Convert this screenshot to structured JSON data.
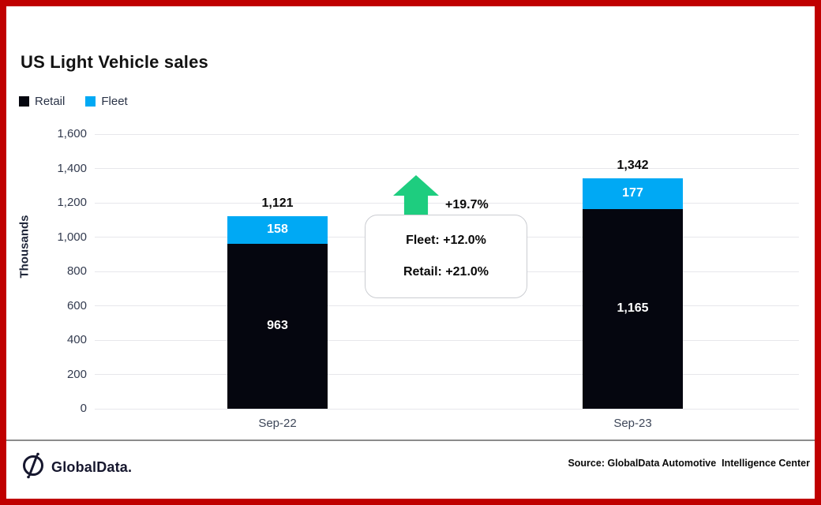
{
  "frame": {
    "border_color": "#C00000",
    "background": "#FFFFFF"
  },
  "header": {
    "title": "US Light Vehicle sales"
  },
  "legend": [
    {
      "label": "Retail",
      "color": "#05060F"
    },
    {
      "label": "Fleet",
      "color": "#00A9F4"
    }
  ],
  "chart_data": {
    "type": "bar",
    "stacked": true,
    "title": "US Light Vehicle sales",
    "ylabel": "Thousands",
    "xlabel": "",
    "ylim": [
      0,
      1600
    ],
    "ytick_interval": 200,
    "yticks": [
      "1,600",
      "1,400",
      "1,200",
      "1,000",
      "800",
      "600",
      "400",
      "200",
      "0"
    ],
    "grid": true,
    "legend_position": "top-left",
    "categories": [
      "Sep-22",
      "Sep-23"
    ],
    "series": [
      {
        "name": "Retail",
        "color": "#05060F",
        "values": [
          963,
          1165
        ],
        "labels": [
          "963",
          "1,165"
        ]
      },
      {
        "name": "Fleet",
        "color": "#00A9F4",
        "values": [
          158,
          177
        ],
        "labels": [
          "158",
          "177"
        ]
      }
    ],
    "totals": [
      1121,
      1342
    ],
    "total_labels": [
      "1,121",
      "1,342"
    ]
  },
  "annotation": {
    "arrow_color": "#1ECD7F",
    "total_change": "+19.7%",
    "box_lines": [
      "Fleet: +12.0%",
      "Retail: +21.0%"
    ]
  },
  "footer": {
    "logo_text": "GlobalData.",
    "source": "Source: GlobalData Automotive  Intelligence Center"
  }
}
